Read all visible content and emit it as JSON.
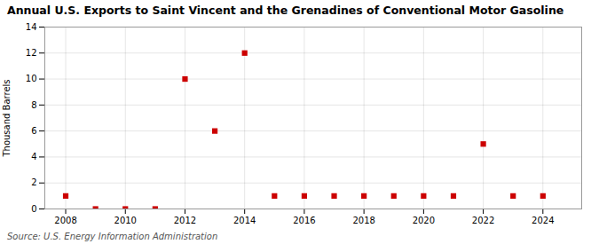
{
  "chart_data": {
    "type": "scatter",
    "title": "Annual U.S. Exports to Saint Vincent and the Grenadines of Conventional Motor Gasoline",
    "ylabel": "Thousand Barrels",
    "source": "Source: U.S. Energy Information Administration",
    "x": [
      2008,
      2009,
      2010,
      2011,
      2012,
      2013,
      2014,
      2015,
      2016,
      2017,
      2018,
      2019,
      2020,
      2021,
      2022,
      2023,
      2024
    ],
    "values": [
      1,
      0,
      0,
      0,
      10,
      6,
      12,
      1,
      1,
      1,
      1,
      1,
      1,
      1,
      5,
      1,
      1
    ],
    "color": "#cc0000",
    "marker": "square",
    "xlim": [
      2007.3,
      2025.3
    ],
    "ylim": [
      0,
      14
    ],
    "xticks": [
      2008,
      2010,
      2012,
      2014,
      2016,
      2018,
      2020,
      2022,
      2024
    ],
    "yticks": [
      0,
      2,
      4,
      6,
      8,
      10,
      12,
      14
    ],
    "grid": true
  }
}
